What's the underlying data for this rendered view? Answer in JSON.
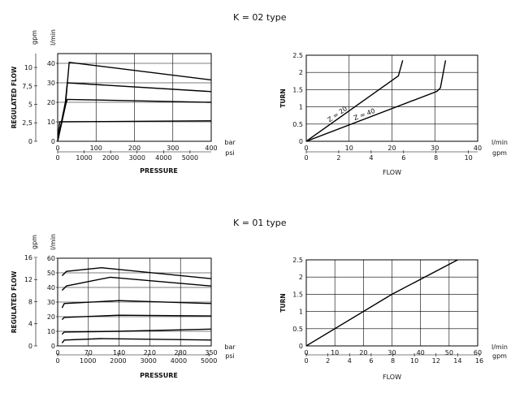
{
  "sections": [
    {
      "title": "K = 02 type"
    },
    {
      "title": "K = 01 type"
    }
  ],
  "chart_data": [
    {
      "id": "k02-pressure",
      "type": "line",
      "xlabel": "PRESSURE",
      "ylabel": "REGULATED FLOW",
      "x_unit": "bar",
      "x2_unit": "psi",
      "y_unit": "l/min",
      "y2_unit": "gpm",
      "xlim": [
        0,
        400
      ],
      "ylim": [
        0,
        45
      ],
      "x_ticks": [
        0,
        100,
        200,
        300,
        400
      ],
      "x2_ticks": [
        0,
        1000,
        2000,
        3000,
        4000,
        5000
      ],
      "y_ticks": [
        0,
        10,
        20,
        30,
        40
      ],
      "y2_ticks": [
        "0",
        "2,5",
        "5",
        "7,5",
        "10"
      ],
      "grid": true,
      "series": [
        {
          "x": [
            0,
            20,
            30,
            400
          ],
          "y": [
            0,
            18,
            40.5,
            31.5
          ]
        },
        {
          "x": [
            0,
            20,
            25,
            400
          ],
          "y": [
            0,
            20,
            30,
            25.5
          ]
        },
        {
          "x": [
            0,
            15,
            25,
            400
          ],
          "y": [
            0,
            15,
            21.5,
            20
          ]
        },
        {
          "x": [
            0,
            5,
            400
          ],
          "y": [
            0,
            10,
            10.5
          ]
        }
      ]
    },
    {
      "id": "k02-flow",
      "type": "line",
      "xlabel": "FLOW",
      "ylabel": "TURN",
      "x_unit": "l/min",
      "x2_unit": "gpm",
      "xlim": [
        0,
        40
      ],
      "ylim": [
        0,
        2.5
      ],
      "x_ticks": [
        0,
        10,
        20,
        30,
        40
      ],
      "x2_ticks": [
        0,
        2,
        4,
        6,
        8,
        10
      ],
      "y_ticks": [
        0,
        0.5,
        1,
        1.5,
        2,
        2.5
      ],
      "grid": true,
      "series": [
        {
          "name": "Z = 20",
          "x": [
            0,
            21.5,
            22.5
          ],
          "y": [
            0,
            1.9,
            2.35
          ]
        },
        {
          "name": "Z = 40",
          "x": [
            0,
            30.5,
            31.3,
            32.5
          ],
          "y": [
            0,
            1.45,
            1.55,
            2.35
          ]
        }
      ]
    },
    {
      "id": "k01-pressure",
      "type": "line",
      "xlabel": "PRESSURE",
      "ylabel": "REGULATED FLOW",
      "x_unit": "bar",
      "x2_unit": "psi",
      "y_unit": "l/min",
      "y2_unit": "gpm",
      "xlim": [
        0,
        350
      ],
      "ylim": [
        0,
        60
      ],
      "x_ticks": [
        0,
        70,
        140,
        210,
        280,
        350
      ],
      "x2_ticks": [
        0,
        1000,
        2000,
        3000,
        4000,
        5000
      ],
      "y_ticks": [
        0,
        10,
        20,
        30,
        40,
        50,
        60
      ],
      "y2_ticks": [
        0,
        4,
        8,
        12,
        16
      ],
      "grid": true,
      "series": [
        {
          "x": [
            10,
            20,
            100,
            350
          ],
          "y": [
            48,
            51,
            53.5,
            46
          ]
        },
        {
          "x": [
            10,
            20,
            120,
            350
          ],
          "y": [
            38,
            41,
            47,
            41
          ]
        },
        {
          "x": [
            10,
            15,
            140,
            350
          ],
          "y": [
            26,
            29,
            31,
            29
          ]
        },
        {
          "x": [
            10,
            15,
            140,
            350
          ],
          "y": [
            18,
            19.5,
            21,
            20.5
          ]
        },
        {
          "x": [
            10,
            15,
            140,
            350
          ],
          "y": [
            8,
            9.5,
            10,
            11.5
          ]
        },
        {
          "x": [
            10,
            15,
            100,
            350
          ],
          "y": [
            2,
            4,
            5,
            4
          ]
        }
      ]
    },
    {
      "id": "k01-flow",
      "type": "line",
      "xlabel": "FLOW",
      "ylabel": "TURN",
      "x_unit": "l/min",
      "x2_unit": "gpm",
      "xlim": [
        0,
        60
      ],
      "ylim": [
        0,
        2.5
      ],
      "x_ticks": [
        0,
        10,
        20,
        30,
        40,
        50,
        60
      ],
      "x2_ticks": [
        0,
        2,
        4,
        6,
        8,
        10,
        12,
        14,
        16
      ],
      "y_ticks": [
        0,
        0.5,
        1,
        1.5,
        2,
        2.5
      ],
      "grid": true,
      "series": [
        {
          "x": [
            0,
            30,
            53
          ],
          "y": [
            0,
            1.5,
            2.5
          ]
        }
      ]
    }
  ]
}
